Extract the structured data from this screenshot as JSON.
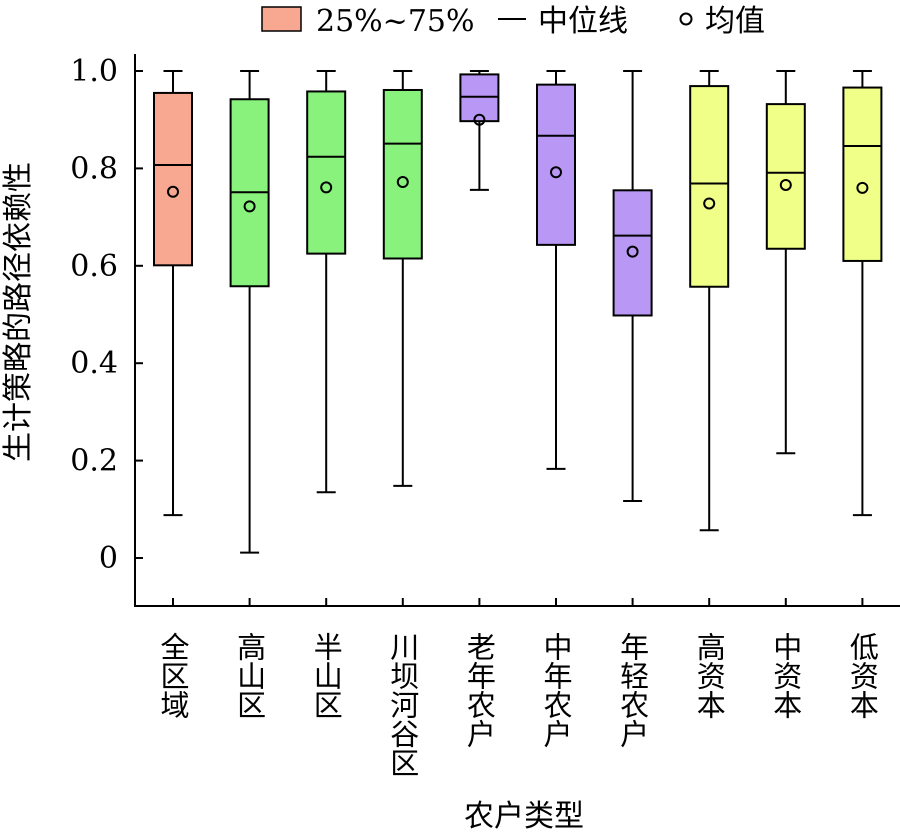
{
  "legend": {
    "iqr_label": "25%~75%",
    "median_label": "中位线",
    "mean_label": "均值"
  },
  "chart_data": {
    "type": "box",
    "title": "",
    "xlabel": "农户类型",
    "ylabel": "生计策略的路径依赖性",
    "ylim": [
      -0.1,
      1.0
    ],
    "yticks": [
      0,
      0.2,
      0.4,
      0.6,
      0.8,
      1.0
    ],
    "ytick_labels": [
      "0",
      "0.2",
      "0.4",
      "0.6",
      "0.8",
      "1.0"
    ],
    "grid": false,
    "legend_position": "top",
    "categories": [
      "全区域",
      "高山区",
      "半山区",
      "川坝河谷区",
      "老年农户",
      "中年农户",
      "年轻农户",
      "高资本",
      "中资本",
      "低资本"
    ],
    "colors": [
      "#F8A890",
      "#88F27C",
      "#88F27C",
      "#88F27C",
      "#B997F5",
      "#B997F5",
      "#B997F5",
      "#F0FF88",
      "#F0FF88",
      "#F0FF88"
    ],
    "legend_swatch_color": "#F8A890",
    "boxes": [
      {
        "min": 0.088,
        "q1": 0.601,
        "median": 0.807,
        "q3": 0.955,
        "max": 1.0,
        "mean": 0.752
      },
      {
        "min": 0.011,
        "q1": 0.558,
        "median": 0.751,
        "q3": 0.942,
        "max": 1.0,
        "mean": 0.722
      },
      {
        "min": 0.135,
        "q1": 0.625,
        "median": 0.824,
        "q3": 0.958,
        "max": 1.0,
        "mean": 0.761
      },
      {
        "min": 0.148,
        "q1": 0.615,
        "median": 0.851,
        "q3": 0.961,
        "max": 1.0,
        "mean": 0.772
      },
      {
        "min": 0.756,
        "q1": 0.897,
        "median": 0.947,
        "q3": 0.993,
        "max": 1.0,
        "mean": 0.9
      },
      {
        "min": 0.183,
        "q1": 0.643,
        "median": 0.867,
        "q3": 0.972,
        "max": 1.0,
        "mean": 0.792
      },
      {
        "min": 0.117,
        "q1": 0.498,
        "median": 0.662,
        "q3": 0.755,
        "max": 1.0,
        "mean": 0.629
      },
      {
        "min": 0.057,
        "q1": 0.557,
        "median": 0.769,
        "q3": 0.969,
        "max": 1.0,
        "mean": 0.728
      },
      {
        "min": 0.215,
        "q1": 0.635,
        "median": 0.791,
        "q3": 0.932,
        "max": 1.0,
        "mean": 0.766
      },
      {
        "min": 0.088,
        "q1": 0.61,
        "median": 0.846,
        "q3": 0.966,
        "max": 1.0,
        "mean": 0.76
      }
    ]
  }
}
